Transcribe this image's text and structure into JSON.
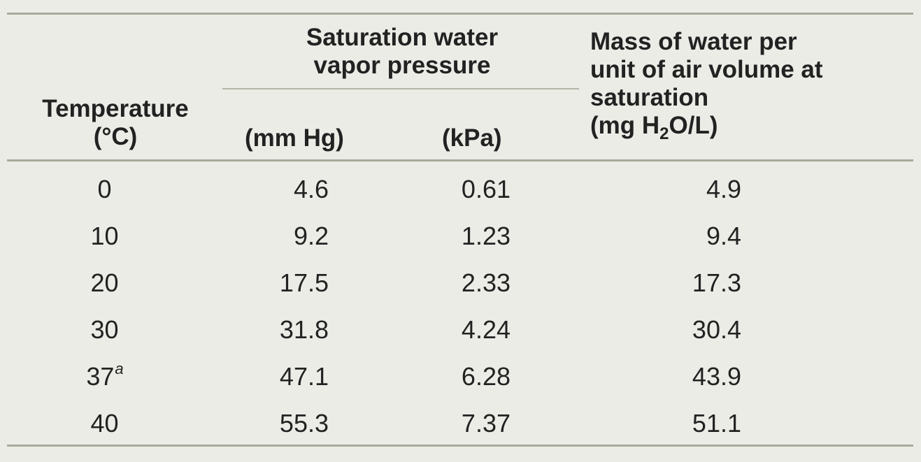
{
  "table": {
    "headers": {
      "temperature_line1": "Temperature",
      "temperature_line2": "(°C)",
      "pressure_group_line1": "Saturation water",
      "pressure_group_line2": "vapor pressure",
      "mmhg": "(mm Hg)",
      "kpa": "(kPa)",
      "mass_line1": "Mass of water per",
      "mass_line2": "unit of air volume at",
      "mass_line3": "saturation",
      "mass_unit_pre": "(mg H",
      "mass_unit_sub": "2",
      "mass_unit_post": "O/L)"
    },
    "rows": [
      {
        "temperature": "0",
        "footnote": "",
        "mmhg": "4.6",
        "kpa": "0.61",
        "mass": "4.9"
      },
      {
        "temperature": "10",
        "footnote": "",
        "mmhg": "9.2",
        "kpa": "1.23",
        "mass": "9.4"
      },
      {
        "temperature": "20",
        "footnote": "",
        "mmhg": "17.5",
        "kpa": "2.33",
        "mass": "17.3"
      },
      {
        "temperature": "30",
        "footnote": "",
        "mmhg": "31.8",
        "kpa": "4.24",
        "mass": "30.4"
      },
      {
        "temperature": "37",
        "footnote": "a",
        "mmhg": "47.1",
        "kpa": "6.28",
        "mass": "43.9"
      },
      {
        "temperature": "40",
        "footnote": "",
        "mmhg": "55.3",
        "kpa": "7.37",
        "mass": "51.1"
      }
    ]
  },
  "colors": {
    "background": "#ecece7",
    "rules": "#a6ab9b",
    "text": "#222222"
  }
}
